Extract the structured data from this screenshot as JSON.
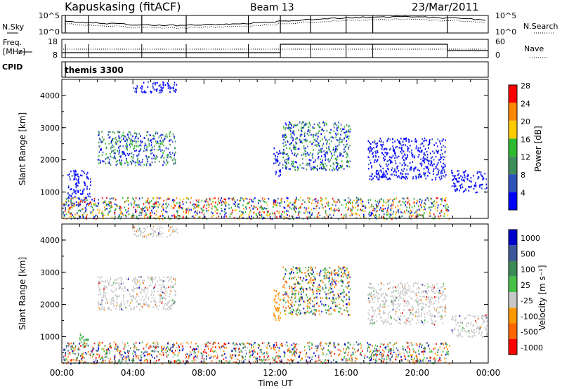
{
  "header": {
    "station": "Kapuskasing (fitACF)",
    "beam": "Beam 13",
    "date": "23/Mar/2011"
  },
  "summary": {
    "nsky_label": "N.Sky",
    "nsky_ticks": [
      "10^5",
      "10^0"
    ],
    "nsearch_label": "N.Search",
    "nsearch_ticks": [
      "10^5",
      "10^0"
    ],
    "freq_label_1": "Freq.",
    "freq_label_2": "[MHz]",
    "freq_ticks": [
      "18",
      "8"
    ],
    "nave_label": "Nave",
    "nave_ticks": [
      "60",
      "0"
    ],
    "cpid_label": "CPID",
    "cpid_value": "themis 3300"
  },
  "chart_data": [
    {
      "type": "heatmap",
      "title": "",
      "ylabel": "Slant Range [km]",
      "ylim": [
        180,
        4500
      ],
      "yticks": [
        "1000",
        "2000",
        "3000",
        "4000"
      ],
      "colorbar_label": "Power [dB]",
      "colorbar_ticks": [
        "4",
        "8",
        "12",
        "16",
        "20",
        "24",
        "28"
      ],
      "colorbar_range": [
        0,
        32
      ],
      "colors": [
        "#0000ff",
        "#2e54ba",
        "#3f8e5a",
        "#2fbb2f",
        "#ffcc00",
        "#ff8800",
        "#ff0000"
      ],
      "regions": [
        {
          "t": [
            2.0,
            6.4
          ],
          "range": [
            1850,
            2900
          ],
          "level": "mixed-blue-green"
        },
        {
          "t": [
            4.0,
            6.5
          ],
          "range": [
            4100,
            4450
          ],
          "level": "blue"
        },
        {
          "t": [
            0.3,
            1.6
          ],
          "range": [
            600,
            1700
          ],
          "level": "blue"
        },
        {
          "t": [
            11.9,
            12.3
          ],
          "range": [
            1500,
            2500
          ],
          "level": "blue"
        },
        {
          "t": [
            12.4,
            16.2
          ],
          "range": [
            1700,
            3200
          ],
          "level": "mixed-blue-green"
        },
        {
          "t": [
            17.2,
            21.6
          ],
          "range": [
            1400,
            2700
          ],
          "level": "blue"
        },
        {
          "t": [
            21.9,
            23.9
          ],
          "range": [
            1000,
            1700
          ],
          "level": "blue"
        },
        {
          "t": [
            0.0,
            21.8
          ],
          "range": [
            180,
            850
          ],
          "level": "mixed-all"
        }
      ]
    },
    {
      "type": "heatmap",
      "title": "",
      "xlabel": "Time UT",
      "xticks": [
        "00:00",
        "04:00",
        "08:00",
        "12:00",
        "16:00",
        "20:00",
        "00:00"
      ],
      "xlim_hours": [
        0,
        24
      ],
      "ylabel": "Slant Range [km]",
      "ylim": [
        180,
        4500
      ],
      "yticks": [
        "1000",
        "2000",
        "3000",
        "4000"
      ],
      "colorbar_label": "Velocity [m s⁻¹]",
      "colorbar_ticks": [
        "1000",
        "500",
        "100",
        "25",
        "-25",
        "-100",
        "-500",
        "-1000"
      ],
      "colors": [
        "#0000cc",
        "#3e569a",
        "#3c8a55",
        "#46c046",
        "#c8c8c8",
        "#ff9900",
        "#ff6600",
        "#ff0000"
      ],
      "regions": [
        {
          "t": [
            2.0,
            6.4
          ],
          "range": [
            1850,
            2900
          ],
          "level": "grey"
        },
        {
          "t": [
            4.0,
            6.5
          ],
          "range": [
            4100,
            4450
          ],
          "level": "grey"
        },
        {
          "t": [
            0.9,
            1.5
          ],
          "range": [
            650,
            1150
          ],
          "level": "green"
        },
        {
          "t": [
            11.9,
            12.3
          ],
          "range": [
            1500,
            2500
          ],
          "level": "orange"
        },
        {
          "t": [
            12.4,
            16.2
          ],
          "range": [
            1700,
            3200
          ],
          "level": "mixed-orange-green"
        },
        {
          "t": [
            17.2,
            21.6
          ],
          "range": [
            1400,
            2700
          ],
          "level": "grey"
        },
        {
          "t": [
            21.9,
            23.9
          ],
          "range": [
            1000,
            1700
          ],
          "level": "grey"
        },
        {
          "t": [
            0.0,
            21.8
          ],
          "range": [
            180,
            850
          ],
          "level": "mixed-all"
        }
      ]
    }
  ]
}
